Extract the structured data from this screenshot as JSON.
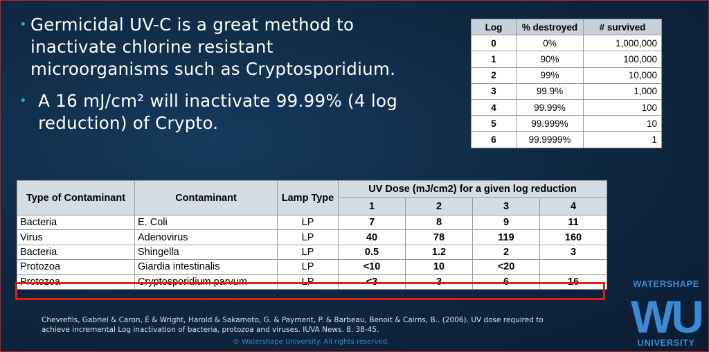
{
  "bullets": [
    "Germicidal UV-C is a great method to inactivate chlorine resistant microorganisms such as Cryptosporidium.",
    "A 16 mJ/cm² will inactivate 99.99% (4 log reduction) of Crypto."
  ],
  "log_table": {
    "headers": [
      "Log",
      "% destroyed",
      "# survived"
    ],
    "rows": [
      [
        "0",
        "0%",
        "1,000,000"
      ],
      [
        "1",
        "90%",
        "100,000"
      ],
      [
        "2",
        "99%",
        "10,000"
      ],
      [
        "3",
        "99.9%",
        "1,000"
      ],
      [
        "4",
        "99.99%",
        "100"
      ],
      [
        "5",
        "99.999%",
        "10"
      ],
      [
        "6",
        "99.9999%",
        "1"
      ]
    ]
  },
  "uv_table": {
    "col_type": "Type of Contaminant",
    "col_contaminant": "Contaminant",
    "col_lamp": "Lamp Type",
    "col_dose": "UV Dose (mJ/cm2) for a given log reduction",
    "log_cols": [
      "1",
      "2",
      "3",
      "4"
    ],
    "rows": [
      {
        "type": "Bacteria",
        "contaminant": "E. Coli",
        "lamp": "LP",
        "d1": "7",
        "d2": "8",
        "d3": "9",
        "d4": "11"
      },
      {
        "type": "Virus",
        "contaminant": "Adenovirus",
        "lamp": "LP",
        "d1": "40",
        "d2": "78",
        "d3": "119",
        "d4": "160"
      },
      {
        "type": "Bacteria",
        "contaminant": "Shingella",
        "lamp": "LP",
        "d1": "0.5",
        "d2": "1.2",
        "d3": "2",
        "d4": "3"
      },
      {
        "type": "Protozoa",
        "contaminant": "Giardia intestinalis",
        "lamp": "LP",
        "d1": "<10",
        "d2": "10",
        "d3": "<20",
        "d4": ""
      },
      {
        "type": "Protozoa",
        "contaminant": "Cryptosporidium parvum",
        "lamp": "LP",
        "d1": "<3",
        "d2": "3",
        "d3": "6",
        "d4": "16"
      }
    ]
  },
  "citation": "Chevrefils, Gabriel & Caron, É & Wright, Harold & Sakamoto, G. & Payment, P. & Barbeau, Benoit & Cairns, B.. (2006). UV dose required to achieve incremental Log inactivation of bacteria, protozoa and viruses. IUVA News. 8. 38-45.",
  "copyright": "© Watershape University. All rights reserved.",
  "logo": {
    "top": "WATERSHAPE",
    "mark": "WU",
    "bottom": "UNIVERSITY",
    "color": "#3b8ad6"
  }
}
